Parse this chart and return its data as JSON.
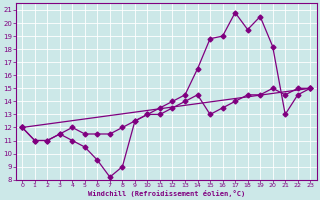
{
  "bg_color": "#cce8e8",
  "line_color": "#800080",
  "xlabel": "Windchill (Refroidissement éolien,°C)",
  "xlim": [
    -0.5,
    23.5
  ],
  "ylim": [
    8,
    21.5
  ],
  "yticks": [
    8,
    9,
    10,
    11,
    12,
    13,
    14,
    15,
    16,
    17,
    18,
    19,
    20,
    21
  ],
  "xticks": [
    0,
    1,
    2,
    3,
    4,
    5,
    6,
    7,
    8,
    9,
    10,
    11,
    12,
    13,
    14,
    15,
    16,
    17,
    18,
    19,
    20,
    21,
    22,
    23
  ],
  "line1_x": [
    0,
    1,
    2,
    3,
    4,
    5,
    6,
    7,
    8,
    9,
    10,
    11,
    12,
    13,
    14,
    15,
    16,
    17,
    18,
    19,
    20,
    21,
    22,
    23
  ],
  "line1_y": [
    12,
    11,
    11,
    11.5,
    11.0,
    10.5,
    9.5,
    8.2,
    9.0,
    12.5,
    13.0,
    13.5,
    14.0,
    14.5,
    16.5,
    18.8,
    19.0,
    20.8,
    19.5,
    20.5,
    18.2,
    13.0,
    14.5,
    15.0
  ],
  "line2_x": [
    0,
    1,
    2,
    3,
    4,
    5,
    6,
    7,
    8,
    9,
    10,
    11,
    12,
    13,
    14,
    15,
    16,
    17,
    18,
    19,
    20,
    21,
    22,
    23
  ],
  "line2_y": [
    12,
    11,
    11,
    11.5,
    12.0,
    11.5,
    11.5,
    11.5,
    12.0,
    12.5,
    13.0,
    13.0,
    13.5,
    14.0,
    14.5,
    13.0,
    13.5,
    14.0,
    14.5,
    14.5,
    15.0,
    14.5,
    15.0,
    15.0
  ],
  "line3_x": [
    0,
    23
  ],
  "line3_y": [
    12,
    15
  ],
  "marker": "D",
  "markersize": 2.5,
  "linewidth": 0.9
}
